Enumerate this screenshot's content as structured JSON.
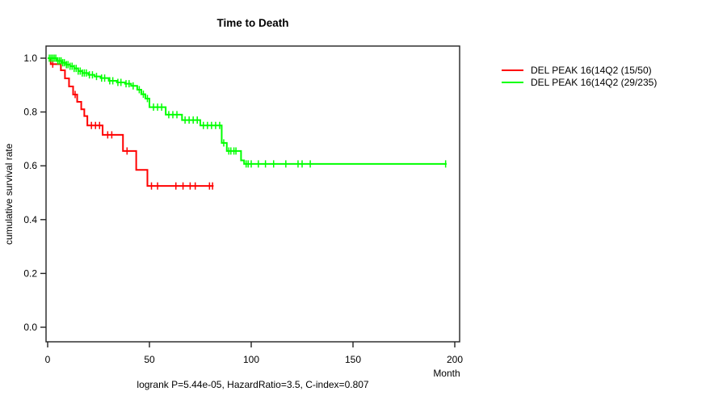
{
  "title": "Time to Death",
  "annotation": "logrank P=5.44e-05, HazardRatio=3.5, C-index=0.807",
  "axes": {
    "x": {
      "label": "Month",
      "ticks": [
        0,
        50,
        100,
        150,
        200
      ],
      "range": [
        0,
        200
      ]
    },
    "y": {
      "label": "cumulative survival rate",
      "ticks": [
        "0.0",
        "0.2",
        "0.4",
        "0.6",
        "0.8",
        "1.0"
      ],
      "range": [
        0,
        1
      ]
    }
  },
  "legend": [
    {
      "label": "DEL PEAK 16(14Q2 (15/50)",
      "color": "#ff0000"
    },
    {
      "label": "DEL PEAK 16(14Q2 (29/235)",
      "color": "#00ff00"
    }
  ],
  "chart_data": {
    "type": "line",
    "subtype": "kaplan-meier-step",
    "title": "Time to Death",
    "xlabel": "Month",
    "ylabel": "cumulative survival rate",
    "xlim": [
      0,
      200
    ],
    "ylim": [
      0,
      1
    ],
    "grid": false,
    "legend_position": "right-outside",
    "series": [
      {
        "name": "DEL PEAK 16(14Q2 (15/50)",
        "color": "#ff0000",
        "events_total": "15/50",
        "steps": [
          [
            0,
            1.0
          ],
          [
            1.5,
            0.978
          ],
          [
            6.5,
            0.955
          ],
          [
            8.5,
            0.925
          ],
          [
            10.5,
            0.895
          ],
          [
            12.5,
            0.865
          ],
          [
            14.5,
            0.838
          ],
          [
            16.5,
            0.81
          ],
          [
            18,
            0.785
          ],
          [
            19.5,
            0.75
          ],
          [
            27,
            0.715
          ],
          [
            37,
            0.655
          ],
          [
            43.5,
            0.585
          ],
          [
            49,
            0.525
          ]
        ],
        "end_month": 81.5,
        "censor_months": [
          2.5,
          13.5,
          21.5,
          23.5,
          25.5,
          29.5,
          31.5,
          39,
          51,
          54,
          63,
          66.5,
          70,
          72.5,
          79.5,
          81
        ]
      },
      {
        "name": "DEL PEAK 16(14Q2 (29/235)",
        "color": "#00ff00",
        "events_total": "29/235",
        "steps": [
          [
            0,
            1.0
          ],
          [
            4.5,
            0.99
          ],
          [
            7,
            0.983
          ],
          [
            9,
            0.976
          ],
          [
            11,
            0.97
          ],
          [
            13,
            0.962
          ],
          [
            15,
            0.952
          ],
          [
            17,
            0.945
          ],
          [
            20,
            0.938
          ],
          [
            23,
            0.932
          ],
          [
            26,
            0.926
          ],
          [
            30,
            0.916
          ],
          [
            34,
            0.91
          ],
          [
            38,
            0.905
          ],
          [
            41,
            0.897
          ],
          [
            44,
            0.883
          ],
          [
            46,
            0.866
          ],
          [
            48,
            0.85
          ],
          [
            50,
            0.818
          ],
          [
            58,
            0.79
          ],
          [
            66,
            0.77
          ],
          [
            75,
            0.75
          ],
          [
            85.5,
            0.685
          ],
          [
            88,
            0.655
          ],
          [
            95,
            0.62
          ],
          [
            96.5,
            0.607
          ]
        ],
        "end_month": 196,
        "censor_months": [
          0.8,
          1.6,
          2.4,
          3.2,
          4,
          5,
          5.8,
          6.6,
          7.4,
          8.2,
          9.2,
          10,
          11,
          12,
          13,
          14,
          15,
          16,
          17,
          18,
          19,
          20.5,
          22,
          24,
          26.5,
          28,
          30.5,
          32,
          34.5,
          36,
          38.5,
          40,
          42,
          45,
          47,
          49,
          52,
          54,
          56,
          59.5,
          61.5,
          63.5,
          67.5,
          69.5,
          71.5,
          73.5,
          76.5,
          78.5,
          80.5,
          82.5,
          84.5,
          86.5,
          89,
          90,
          91.5,
          92.5,
          97.5,
          98.5,
          100,
          103.5,
          107,
          111,
          117,
          123,
          125,
          129,
          195.5
        ]
      }
    ]
  }
}
